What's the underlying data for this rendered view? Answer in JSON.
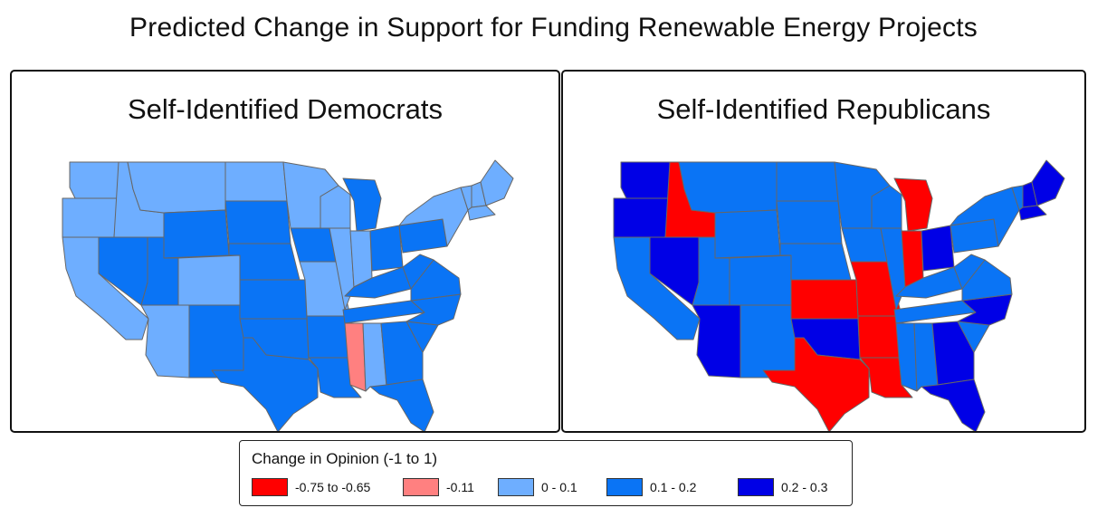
{
  "title": "Predicted Change in Support for Funding Renewable Energy Projects",
  "colors": {
    "strong_negative": "#ff0000",
    "weak_negative": "#ff8080",
    "low_positive": "#6eaeff",
    "mid_positive": "#0a74f5",
    "high_positive": "#0000e6",
    "border": "#666666"
  },
  "panels": [
    {
      "id": "democrats",
      "title": "Self-Identified Democrats"
    },
    {
      "id": "republicans",
      "title": "Self-Identified Republicans"
    }
  ],
  "legend": {
    "title": "Change in Opinion (-1 to 1)",
    "items": [
      {
        "label": "-0.75 to -0.65",
        "color": "#ff0000"
      },
      {
        "label": "-0.11",
        "color": "#ff8080"
      },
      {
        "label": "0 - 0.1",
        "color": "#6eaeff"
      },
      {
        "label": "0.1 - 0.2",
        "color": "#0a74f5"
      },
      {
        "label": "0.2 - 0.3",
        "color": "#0000e6"
      }
    ]
  },
  "state_values": {
    "democrats": {
      "WA": "low",
      "OR": "low",
      "CA": "low",
      "ID": "low",
      "MT": "low",
      "ND": "low",
      "MN": "low",
      "WI": "low",
      "MI": "mid",
      "NV": "mid",
      "UT": "mid",
      "WY": "mid",
      "SD": "mid",
      "NE": "mid",
      "IA": "mid",
      "IL": "low",
      "IN": "low",
      "OH": "mid",
      "PA": "mid",
      "NY": "low",
      "ME": "low",
      "NH": "low",
      "VT": "low",
      "MA": "low",
      "AZ": "low",
      "CO": "low",
      "KS": "mid",
      "MO": "low",
      "KY": "mid",
      "WV": "mid",
      "VA": "mid",
      "NM": "mid",
      "OK": "mid",
      "AR": "mid",
      "TN": "mid",
      "NC": "mid",
      "SC": "mid",
      "TX": "mid",
      "LA": "mid",
      "MS": "weakneg",
      "AL": "low",
      "GA": "mid",
      "FL": "mid"
    },
    "republicans": {
      "WA": "high",
      "OR": "high",
      "CA": "mid",
      "ID": "strongneg",
      "MT": "mid",
      "ND": "mid",
      "MN": "mid",
      "WI": "mid",
      "MI": "strongneg",
      "NV": "high",
      "UT": "mid",
      "WY": "mid",
      "SD": "mid",
      "NE": "mid",
      "IA": "mid",
      "IL": "mid",
      "IN": "strongneg",
      "OH": "high",
      "PA": "mid",
      "NY": "mid",
      "ME": "high",
      "NH": "high",
      "VT": "mid",
      "MA": "high",
      "AZ": "high",
      "CO": "mid",
      "KS": "strongneg",
      "MO": "strongneg",
      "KY": "mid",
      "WV": "mid",
      "VA": "mid",
      "NM": "mid",
      "OK": "high",
      "AR": "strongneg",
      "TN": "mid",
      "NC": "high",
      "SC": "mid",
      "TX": "strongneg",
      "LA": "strongneg",
      "MS": "mid",
      "AL": "mid",
      "GA": "high",
      "FL": "high"
    }
  }
}
